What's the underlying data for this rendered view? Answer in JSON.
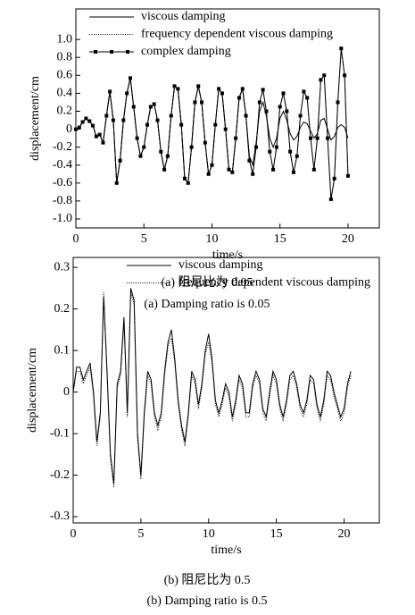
{
  "chart_data": [
    {
      "type": "line",
      "ylabel": "displacement/cm",
      "xlabel": "time/s",
      "legend": "upper left",
      "captions": [
        "(a) 阻尼比为 0.05",
        "(a) Damping ratio is 0.05"
      ],
      "xlim": [
        0,
        22.3
      ],
      "ylim": [
        -1.1,
        1.34
      ],
      "xticks": [
        0,
        5,
        10,
        15,
        20
      ],
      "yticks": [
        {
          "value": -1,
          "label": "-1.0"
        },
        -0.8,
        -0.6,
        -0.4,
        -0.2,
        0,
        0.2,
        0.4,
        0.6,
        0.8,
        {
          "value": 1,
          "label": "1.0"
        }
      ],
      "x": [
        0,
        0.25,
        0.5,
        0.75,
        1,
        1.25,
        1.5,
        1.75,
        2,
        2.25,
        2.5,
        2.75,
        3,
        3.25,
        3.5,
        3.75,
        4,
        4.25,
        4.5,
        4.75,
        5,
        5.25,
        5.5,
        5.75,
        6,
        6.25,
        6.5,
        6.75,
        7,
        7.25,
        7.5,
        7.75,
        8,
        8.25,
        8.5,
        8.75,
        9,
        9.25,
        9.5,
        9.75,
        10,
        10.25,
        10.5,
        10.75,
        11,
        11.25,
        11.5,
        11.75,
        12,
        12.25,
        12.5,
        12.75,
        13,
        13.25,
        13.5,
        13.75,
        14,
        14.25,
        14.5,
        14.75,
        15,
        15.25,
        15.5,
        15.75,
        16,
        16.25,
        16.5,
        16.75,
        17,
        17.25,
        17.5,
        17.75,
        18,
        18.25,
        18.5,
        18.75,
        19,
        19.25,
        19.5,
        19.75,
        20
      ],
      "series": [
        {
          "name": "viscous damping",
          "color": "#000000",
          "style": "solid",
          "marker": "none",
          "values": [
            0,
            0.02,
            0.08,
            0.12,
            0.09,
            0.04,
            -0.08,
            -0.06,
            -0.15,
            0.15,
            0.42,
            0.1,
            -0.6,
            -0.35,
            0.1,
            0.4,
            0.57,
            0.25,
            -0.1,
            -0.3,
            -0.2,
            0.05,
            0.25,
            0.28,
            0.1,
            -0.25,
            -0.45,
            -0.3,
            0.15,
            0.48,
            0.45,
            0.05,
            -0.55,
            -0.6,
            -0.2,
            0.3,
            0.48,
            0.3,
            -0.15,
            -0.5,
            -0.4,
            0.05,
            0.45,
            0.4,
            0,
            -0.45,
            -0.48,
            -0.1,
            0.35,
            0.45,
            0.15,
            -0.3,
            -0.4,
            -0.15,
            0.2,
            0.3,
            0.15,
            -0.1,
            -0.2,
            -0.1,
            0.12,
            0.2,
            0.1,
            -0.05,
            -0.12,
            -0.08,
            0.02,
            0.08,
            0.06,
            -0.02,
            -0.1,
            -0.05,
            0.1,
            0.12,
            0,
            -0.12,
            -0.08,
            0.02,
            0.05,
            0.02,
            -0.1
          ]
        },
        {
          "name": "frequency dependent viscous damping",
          "color": "#000000",
          "style": "dotted",
          "marker": "none",
          "values": [
            0,
            0.02,
            0.08,
            0.12,
            0.09,
            0.04,
            -0.08,
            -0.06,
            -0.15,
            0.15,
            0.42,
            0.1,
            -0.6,
            -0.35,
            0.1,
            0.4,
            0.57,
            0.25,
            -0.1,
            -0.3,
            -0.2,
            0.05,
            0.25,
            0.28,
            0.1,
            -0.25,
            -0.45,
            -0.3,
            0.15,
            0.48,
            0.45,
            0.05,
            -0.55,
            -0.6,
            -0.2,
            0.3,
            0.48,
            0.3,
            -0.15,
            -0.5,
            -0.4,
            0.05,
            0.45,
            0.4,
            0,
            -0.45,
            -0.48,
            -0.1,
            0.35,
            0.45,
            0.15,
            -0.35,
            -0.5,
            -0.2,
            0.3,
            0.44,
            0.2,
            -0.25,
            -0.45,
            -0.2,
            0.25,
            0.4,
            0.2,
            -0.25,
            -0.48,
            -0.3,
            0.15,
            0.42,
            0.35,
            -0.1,
            -0.45,
            -0.1,
            0.55,
            0.6,
            -0.1,
            -0.78,
            -0.55,
            0.3,
            0.9,
            0.6,
            -0.52
          ]
        },
        {
          "name": "complex damping",
          "color": "#000000",
          "style": "solid",
          "marker": "square",
          "values": [
            0,
            0.02,
            0.08,
            0.12,
            0.09,
            0.04,
            -0.08,
            -0.06,
            -0.15,
            0.15,
            0.42,
            0.1,
            -0.6,
            -0.35,
            0.1,
            0.4,
            0.57,
            0.25,
            -0.1,
            -0.3,
            -0.2,
            0.05,
            0.25,
            0.28,
            0.1,
            -0.25,
            -0.45,
            -0.3,
            0.15,
            0.48,
            0.45,
            0.05,
            -0.55,
            -0.6,
            -0.2,
            0.3,
            0.48,
            0.3,
            -0.15,
            -0.5,
            -0.4,
            0.05,
            0.45,
            0.4,
            0,
            -0.45,
            -0.48,
            -0.1,
            0.35,
            0.45,
            0.15,
            -0.35,
            -0.5,
            -0.2,
            0.3,
            0.44,
            0.2,
            -0.25,
            -0.45,
            -0.2,
            0.25,
            0.4,
            0.2,
            -0.25,
            -0.48,
            -0.3,
            0.15,
            0.42,
            0.35,
            -0.1,
            -0.45,
            -0.1,
            0.55,
            0.6,
            -0.1,
            -0.78,
            -0.55,
            0.3,
            0.9,
            0.6,
            -0.52
          ]
        }
      ]
    },
    {
      "type": "line",
      "ylabel": "displacement/cm",
      "xlabel": "time/s",
      "legend": "upper right",
      "captions": [
        "(b) 阻尼比为 0.5",
        "(b) Damping ratio is 0.5"
      ],
      "xlim": [
        0,
        22.6
      ],
      "ylim": [
        -0.315,
        0.324
      ],
      "xticks": [
        0,
        5,
        10,
        15,
        20
      ],
      "yticks": [
        -0.3,
        -0.2,
        -0.1,
        0,
        0.1,
        0.2,
        0.3
      ],
      "x": [
        0,
        0.25,
        0.5,
        0.75,
        1,
        1.25,
        1.5,
        1.75,
        2,
        2.25,
        2.5,
        2.75,
        3,
        3.25,
        3.5,
        3.75,
        4,
        4.25,
        4.5,
        4.75,
        5,
        5.25,
        5.5,
        5.75,
        6,
        6.25,
        6.5,
        6.75,
        7,
        7.25,
        7.5,
        7.75,
        8,
        8.25,
        8.5,
        8.75,
        9,
        9.25,
        9.5,
        9.75,
        10,
        10.25,
        10.5,
        10.75,
        11,
        11.25,
        11.5,
        11.75,
        12,
        12.25,
        12.5,
        12.75,
        13,
        13.25,
        13.5,
        13.75,
        14,
        14.25,
        14.5,
        14.75,
        15,
        15.25,
        15.5,
        15.75,
        16,
        16.25,
        16.5,
        16.75,
        17,
        17.25,
        17.5,
        17.75,
        18,
        18.25,
        18.5,
        18.75,
        19,
        19.25,
        19.5,
        19.75,
        20,
        20.25,
        20.5
      ],
      "series": [
        {
          "name": "viscous damping",
          "color": "#000000",
          "style": "solid",
          "marker": "none",
          "values": [
            0,
            0.06,
            0.06,
            0.03,
            0.05,
            0.07,
            0,
            -0.12,
            -0.05,
            0.23,
            0.05,
            -0.15,
            -0.22,
            0.02,
            0.05,
            0.18,
            -0.05,
            0.25,
            0.22,
            -0.1,
            -0.2,
            -0.05,
            0.05,
            0.03,
            -0.05,
            -0.08,
            -0.05,
            0.05,
            0.12,
            0.15,
            0.08,
            -0.02,
            -0.08,
            -0.12,
            -0.05,
            0.05,
            0.03,
            -0.03,
            0.02,
            0.1,
            0.14,
            0.08,
            -0.02,
            -0.05,
            -0.02,
            0.02,
            0,
            -0.06,
            -0.02,
            0.04,
            0.02,
            -0.05,
            -0.05,
            0.02,
            0.05,
            0.03,
            -0.04,
            -0.06,
            0,
            0.05,
            0.03,
            -0.03,
            -0.06,
            -0.02,
            0.04,
            0.05,
            0.02,
            -0.03,
            -0.05,
            -0.02,
            0.04,
            0.03,
            -0.03,
            -0.06,
            -0.02,
            0.05,
            0.04,
            0,
            -0.03,
            -0.06,
            -0.04,
            0.02,
            0.05
          ]
        },
        {
          "name": "frequency dependent viscous damping",
          "color": "#000000",
          "style": "dotted",
          "marker": "none",
          "values": [
            0,
            0.05,
            0.05,
            0.02,
            0.04,
            0.06,
            -0.01,
            -0.13,
            -0.06,
            0.24,
            0.04,
            -0.16,
            -0.23,
            0.01,
            0.04,
            0.17,
            -0.06,
            0.24,
            0.21,
            -0.11,
            -0.21,
            -0.06,
            0.04,
            0.02,
            -0.06,
            -0.09,
            -0.06,
            0.04,
            0.11,
            0.13,
            0.07,
            -0.03,
            -0.09,
            -0.13,
            -0.06,
            0.04,
            0.02,
            -0.04,
            0.01,
            0.09,
            0.12,
            0.07,
            -0.03,
            -0.06,
            -0.03,
            0.01,
            -0.01,
            -0.07,
            -0.03,
            0.03,
            0.01,
            -0.06,
            -0.06,
            0.01,
            0.04,
            0.02,
            -0.05,
            -0.07,
            -0.01,
            0.04,
            0.02,
            -0.04,
            -0.07,
            -0.03,
            0.03,
            0.04,
            0.01,
            -0.04,
            -0.06,
            -0.03,
            0.03,
            0.02,
            -0.04,
            -0.07,
            -0.03,
            0.04,
            0.03,
            -0.01,
            -0.04,
            -0.07,
            -0.05,
            0.01,
            0.04
          ]
        }
      ]
    }
  ]
}
